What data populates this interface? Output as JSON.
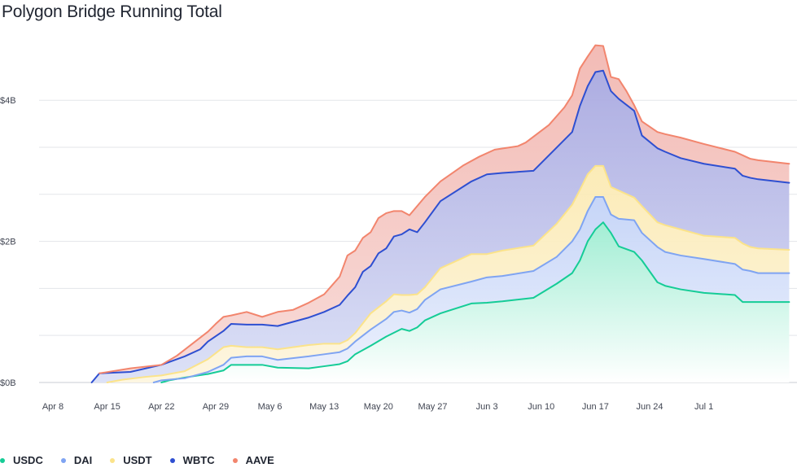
{
  "chart_data": {
    "type": "area",
    "stacked": true,
    "title": "Polygon Bridge Running Total",
    "xlabel": "",
    "ylabel": "",
    "y_unit": "billions USD",
    "ylim": [
      0,
      5.0
    ],
    "y_ticks": [
      {
        "value": 0,
        "label": "$0B"
      },
      {
        "value": 2,
        "label": "$2B"
      },
      {
        "value": 4,
        "label": "$4B"
      }
    ],
    "y_gridlines": [
      0,
      0.667,
      1.333,
      2,
      2.667,
      3.333,
      4
    ],
    "x_range": [
      0,
      95
    ],
    "x_ticks": [
      {
        "day": 0,
        "label": "Apr 8"
      },
      {
        "day": 7,
        "label": "Apr 15"
      },
      {
        "day": 14,
        "label": "Apr 22"
      },
      {
        "day": 21,
        "label": "Apr 29"
      },
      {
        "day": 28,
        "label": "May 6"
      },
      {
        "day": 35,
        "label": "May 13"
      },
      {
        "day": 42,
        "label": "May 20"
      },
      {
        "day": 49,
        "label": "May 27"
      },
      {
        "day": 56,
        "label": "Jun 3"
      },
      {
        "day": 63,
        "label": "Jun 10"
      },
      {
        "day": 70,
        "label": "Jun 17"
      },
      {
        "day": 77,
        "label": "Jun  24"
      },
      {
        "day": 84,
        "label": "Jul 1"
      }
    ],
    "series": [
      {
        "name": "USDC",
        "color": "#15cc96",
        "points": [
          [
            14,
            0
          ],
          [
            15,
            0.03
          ],
          [
            17,
            0.07
          ],
          [
            20,
            0.12
          ],
          [
            22,
            0.17
          ],
          [
            23,
            0.25
          ],
          [
            27,
            0.25
          ],
          [
            29,
            0.21
          ],
          [
            33,
            0.2
          ],
          [
            35,
            0.23
          ],
          [
            37,
            0.26
          ],
          [
            38,
            0.3
          ],
          [
            39,
            0.4
          ],
          [
            41,
            0.52
          ],
          [
            43,
            0.65
          ],
          [
            45,
            0.76
          ],
          [
            46,
            0.73
          ],
          [
            47,
            0.78
          ],
          [
            48,
            0.88
          ],
          [
            50,
            0.98
          ],
          [
            54,
            1.12
          ],
          [
            56,
            1.13
          ],
          [
            58,
            1.15
          ],
          [
            62,
            1.2
          ],
          [
            65,
            1.4
          ],
          [
            67,
            1.55
          ],
          [
            68,
            1.73
          ],
          [
            69,
            2.0
          ],
          [
            70,
            2.17
          ],
          [
            71,
            2.27
          ],
          [
            72,
            2.12
          ],
          [
            73,
            1.93
          ],
          [
            75,
            1.85
          ],
          [
            76,
            1.73
          ],
          [
            78,
            1.42
          ],
          [
            79,
            1.37
          ],
          [
            81,
            1.32
          ],
          [
            84,
            1.27
          ],
          [
            88,
            1.24
          ],
          [
            89,
            1.14
          ],
          [
            90,
            1.14
          ],
          [
            91,
            1.14
          ],
          [
            95,
            1.14
          ]
        ]
      },
      {
        "name": "DAI",
        "color": "#7fa4f2",
        "points": [
          [
            13,
            0
          ],
          [
            14,
            0.03
          ],
          [
            17,
            0.06
          ],
          [
            20,
            0.15
          ],
          [
            22,
            0.25
          ],
          [
            23,
            0.35
          ],
          [
            25,
            0.37
          ],
          [
            27,
            0.37
          ],
          [
            29,
            0.32
          ],
          [
            33,
            0.37
          ],
          [
            35,
            0.4
          ],
          [
            37,
            0.43
          ],
          [
            38,
            0.48
          ],
          [
            39,
            0.58
          ],
          [
            41,
            0.75
          ],
          [
            43,
            0.9
          ],
          [
            44,
            1.0
          ],
          [
            45,
            1.02
          ],
          [
            46,
            0.99
          ],
          [
            47,
            1.04
          ],
          [
            48,
            1.17
          ],
          [
            50,
            1.32
          ],
          [
            54,
            1.43
          ],
          [
            56,
            1.49
          ],
          [
            58,
            1.51
          ],
          [
            62,
            1.58
          ],
          [
            65,
            1.78
          ],
          [
            67,
            2.0
          ],
          [
            68,
            2.17
          ],
          [
            69,
            2.43
          ],
          [
            70,
            2.63
          ],
          [
            71,
            2.63
          ],
          [
            72,
            2.38
          ],
          [
            73,
            2.32
          ],
          [
            75,
            2.3
          ],
          [
            76,
            2.12
          ],
          [
            78,
            1.92
          ],
          [
            79,
            1.85
          ],
          [
            81,
            1.8
          ],
          [
            84,
            1.75
          ],
          [
            88,
            1.68
          ],
          [
            89,
            1.6
          ],
          [
            90,
            1.58
          ],
          [
            91,
            1.55
          ],
          [
            95,
            1.55
          ]
        ]
      },
      {
        "name": "USDT",
        "color": "#fbe38a",
        "points": [
          [
            7,
            0
          ],
          [
            9,
            0.04
          ],
          [
            12,
            0.08
          ],
          [
            14,
            0.1
          ],
          [
            17,
            0.16
          ],
          [
            20,
            0.33
          ],
          [
            22,
            0.5
          ],
          [
            23,
            0.52
          ],
          [
            25,
            0.5
          ],
          [
            27,
            0.5
          ],
          [
            29,
            0.47
          ],
          [
            33,
            0.53
          ],
          [
            35,
            0.55
          ],
          [
            37,
            0.55
          ],
          [
            38,
            0.6
          ],
          [
            39,
            0.7
          ],
          [
            41,
            0.98
          ],
          [
            43,
            1.15
          ],
          [
            44,
            1.25
          ],
          [
            45,
            1.24
          ],
          [
            46,
            1.24
          ],
          [
            47,
            1.25
          ],
          [
            48,
            1.35
          ],
          [
            50,
            1.62
          ],
          [
            54,
            1.82
          ],
          [
            56,
            1.82
          ],
          [
            58,
            1.87
          ],
          [
            62,
            1.94
          ],
          [
            65,
            2.25
          ],
          [
            67,
            2.52
          ],
          [
            68,
            2.73
          ],
          [
            69,
            2.95
          ],
          [
            70,
            3.07
          ],
          [
            71,
            3.07
          ],
          [
            72,
            2.77
          ],
          [
            73,
            2.72
          ],
          [
            75,
            2.62
          ],
          [
            76,
            2.5
          ],
          [
            78,
            2.27
          ],
          [
            79,
            2.23
          ],
          [
            81,
            2.17
          ],
          [
            84,
            2.08
          ],
          [
            88,
            2.05
          ],
          [
            89,
            1.97
          ],
          [
            90,
            1.92
          ],
          [
            91,
            1.9
          ],
          [
            95,
            1.88
          ]
        ]
      },
      {
        "name": "WBTC",
        "color": "#2e4fd1",
        "points": [
          [
            5,
            0
          ],
          [
            6,
            0.13
          ],
          [
            10,
            0.15
          ],
          [
            14,
            0.25
          ],
          [
            17,
            0.37
          ],
          [
            19,
            0.47
          ],
          [
            20,
            0.58
          ],
          [
            22,
            0.73
          ],
          [
            23,
            0.83
          ],
          [
            25,
            0.82
          ],
          [
            27,
            0.82
          ],
          [
            29,
            0.8
          ],
          [
            33,
            0.92
          ],
          [
            35,
            1.0
          ],
          [
            37,
            1.1
          ],
          [
            38,
            1.23
          ],
          [
            39,
            1.35
          ],
          [
            40,
            1.57
          ],
          [
            41,
            1.65
          ],
          [
            42,
            1.83
          ],
          [
            43,
            1.9
          ],
          [
            44,
            2.07
          ],
          [
            45,
            2.1
          ],
          [
            46,
            2.17
          ],
          [
            47,
            2.13
          ],
          [
            48,
            2.27
          ],
          [
            50,
            2.57
          ],
          [
            54,
            2.85
          ],
          [
            56,
            2.95
          ],
          [
            58,
            2.97
          ],
          [
            62,
            3.0
          ],
          [
            65,
            3.33
          ],
          [
            67,
            3.55
          ],
          [
            68,
            3.92
          ],
          [
            69,
            4.2
          ],
          [
            70,
            4.4
          ],
          [
            71,
            4.42
          ],
          [
            72,
            4.13
          ],
          [
            73,
            4.02
          ],
          [
            75,
            3.85
          ],
          [
            76,
            3.5
          ],
          [
            78,
            3.32
          ],
          [
            79,
            3.27
          ],
          [
            81,
            3.18
          ],
          [
            84,
            3.1
          ],
          [
            88,
            3.03
          ],
          [
            89,
            2.93
          ],
          [
            90,
            2.9
          ],
          [
            91,
            2.88
          ],
          [
            95,
            2.83
          ]
        ]
      },
      {
        "name": "AAVE",
        "color": "#f2856d",
        "points": [
          [
            6,
            0.13
          ],
          [
            10,
            0.2
          ],
          [
            14,
            0.25
          ],
          [
            16,
            0.38
          ],
          [
            18,
            0.55
          ],
          [
            20,
            0.72
          ],
          [
            21,
            0.83
          ],
          [
            22,
            0.93
          ],
          [
            23,
            0.95
          ],
          [
            25,
            1.0
          ],
          [
            27,
            0.93
          ],
          [
            29,
            1.0
          ],
          [
            31,
            1.03
          ],
          [
            33,
            1.13
          ],
          [
            35,
            1.25
          ],
          [
            37,
            1.5
          ],
          [
            38,
            1.8
          ],
          [
            39,
            1.87
          ],
          [
            40,
            2.05
          ],
          [
            41,
            2.13
          ],
          [
            42,
            2.33
          ],
          [
            43,
            2.4
          ],
          [
            44,
            2.43
          ],
          [
            45,
            2.43
          ],
          [
            46,
            2.37
          ],
          [
            48,
            2.63
          ],
          [
            50,
            2.85
          ],
          [
            53,
            3.08
          ],
          [
            55,
            3.2
          ],
          [
            57,
            3.3
          ],
          [
            60,
            3.35
          ],
          [
            61,
            3.4
          ],
          [
            64,
            3.65
          ],
          [
            66,
            3.9
          ],
          [
            67,
            4.07
          ],
          [
            68,
            4.45
          ],
          [
            69,
            4.62
          ],
          [
            70,
            4.78
          ],
          [
            71,
            4.77
          ],
          [
            72,
            4.33
          ],
          [
            73,
            4.3
          ],
          [
            74,
            4.13
          ],
          [
            75,
            3.93
          ],
          [
            76,
            3.7
          ],
          [
            78,
            3.55
          ],
          [
            79,
            3.52
          ],
          [
            81,
            3.47
          ],
          [
            84,
            3.38
          ],
          [
            88,
            3.27
          ],
          [
            89,
            3.22
          ],
          [
            90,
            3.17
          ],
          [
            91,
            3.15
          ],
          [
            95,
            3.1
          ]
        ]
      }
    ],
    "legend": [
      "USDC",
      "DAI",
      "USDT",
      "WBTC",
      "AAVE"
    ],
    "legend_position": "bottom-left"
  }
}
